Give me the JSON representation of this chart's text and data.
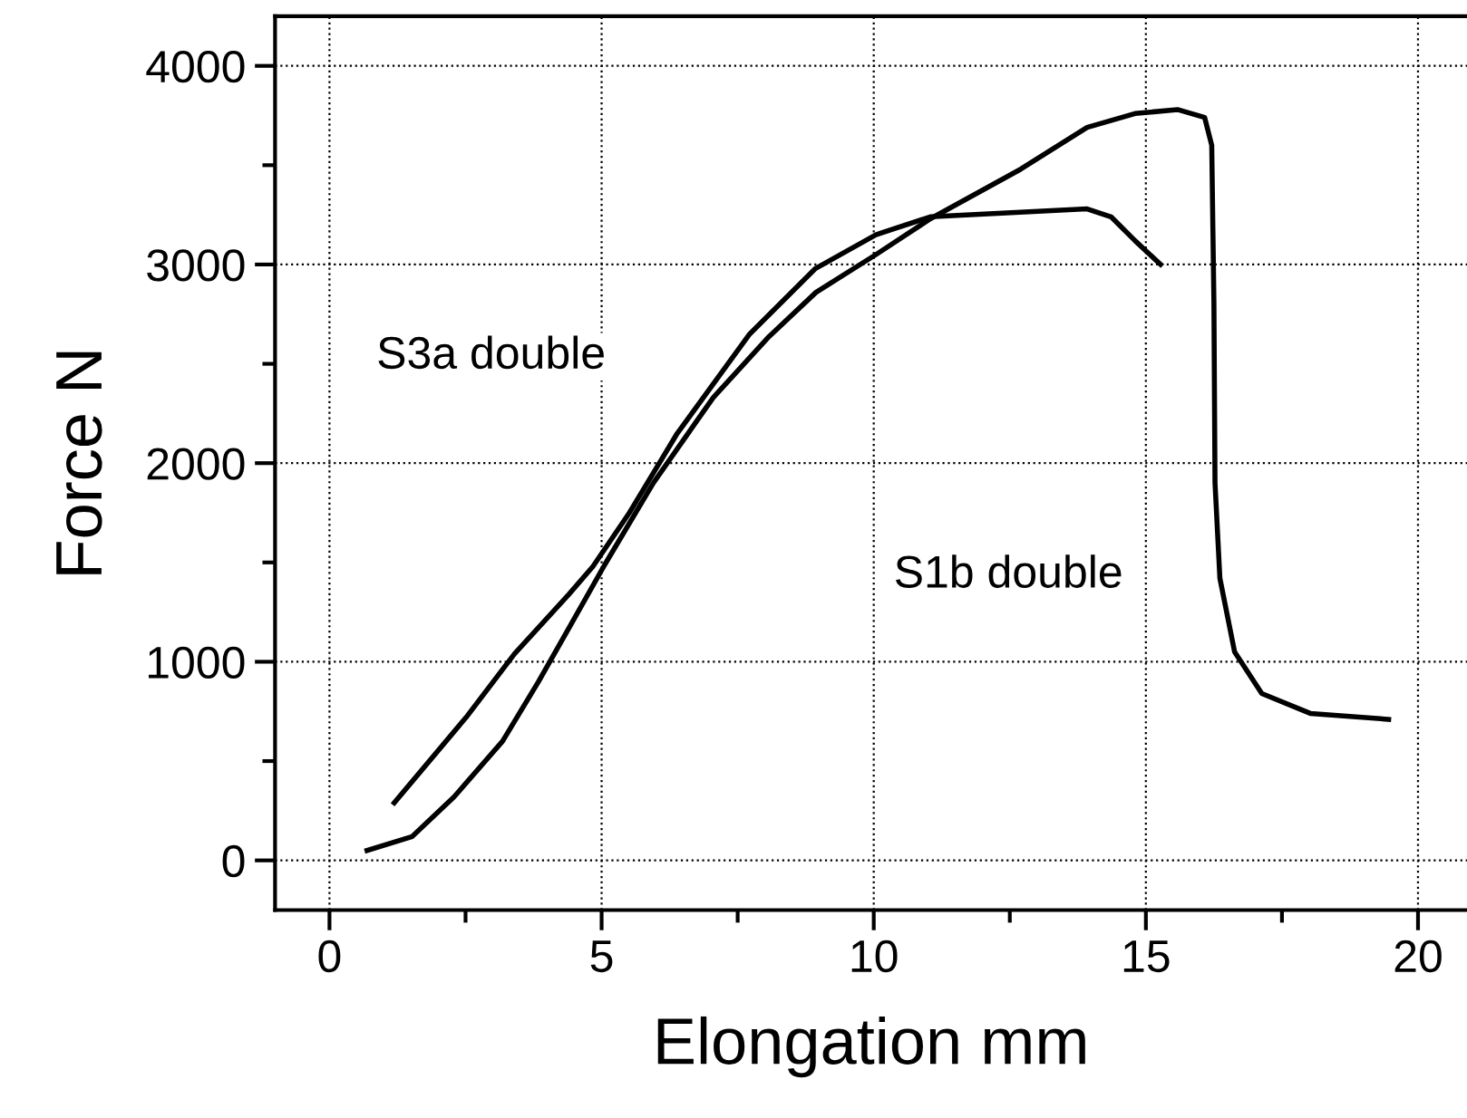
{
  "chart_data": {
    "type": "line",
    "xlabel": "Elongation mm",
    "ylabel": "Force N",
    "xlim": [
      -1,
      20.9
    ],
    "xticks": [
      0,
      5,
      10,
      15,
      20
    ],
    "ylim": [
      -250,
      4250
    ],
    "yticks": [
      0,
      1000,
      2000,
      3000,
      4000
    ],
    "grid": true,
    "legend": false,
    "marker": "none",
    "line_style": "solid",
    "series": [
      {
        "color": "#000000",
        "x": [
          1.19,
          2.51,
          3.4,
          4.4,
          4.84,
          5.51,
          6.39,
          7.72,
          8.93,
          10.04,
          11.04,
          13.92,
          14.36,
          14.8,
          15.27
        ],
        "values": [
          290,
          720,
          1040,
          1340,
          1480,
          1750,
          2150,
          2650,
          2980,
          3150,
          3240,
          3280,
          3240,
          3120,
          3000
        ]
      },
      {
        "color": "#000000",
        "x": [
          0.69,
          1.52,
          2.29,
          3.18,
          3.84,
          4.4,
          5.06,
          5.95,
          7.05,
          8.05,
          8.94,
          10.04,
          11.04,
          12.7,
          13.92,
          14.8,
          15.58,
          16.08,
          16.21,
          16.25,
          16.27,
          16.36,
          16.63,
          17.13,
          18.02,
          19.46
        ],
        "values": [
          50,
          120,
          320,
          600,
          900,
          1170,
          1490,
          1900,
          2330,
          2630,
          2860,
          3050,
          3230,
          3480,
          3690,
          3760,
          3780,
          3740,
          3600,
          2810,
          1900,
          1420,
          1050,
          840,
          740,
          710
        ]
      }
    ],
    "annotations": [
      "S3a double",
      "S1b double"
    ]
  }
}
